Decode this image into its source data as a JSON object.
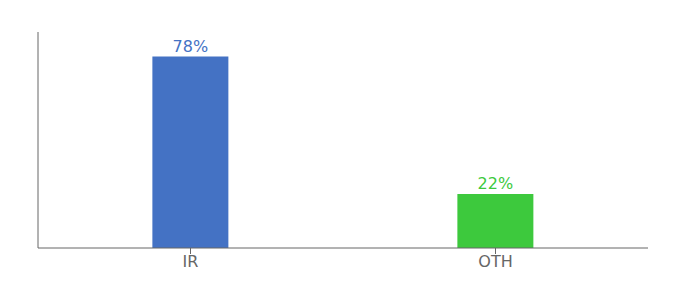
{
  "chart_data": {
    "type": "bar",
    "categories": [
      "IR",
      "OTH"
    ],
    "values": [
      78,
      22
    ],
    "value_labels": [
      "78%",
      "22%"
    ],
    "data_labels": true,
    "colors": [
      "#4472C4",
      "#3DC93D"
    ],
    "ylim": [
      0,
      88
    ],
    "tick_labels": "x",
    "grid": false
  }
}
